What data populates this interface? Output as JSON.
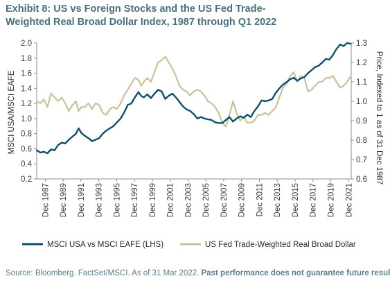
{
  "title": {
    "line1": "Exhibit 8: US vs Foreign Stocks and the US Fed Trade-",
    "line2": "Weighted Real Broad Dollar Index, 1987 through Q1 2022"
  },
  "source": {
    "text": "Source: Bloomberg. FactSet/MSCI. As of 31 Mar 2022.",
    "bold": "Past performance does not guarantee future results."
  },
  "colors": {
    "series1": "#0e4f6e",
    "series2": "#c7c29a",
    "title": "#4a6f7c",
    "source": "#5c7f8c"
  },
  "chart_data": {
    "type": "line",
    "ylabel": "MSCI USA/MSCI EAFE",
    "y2label": "Price, Indexed to 1 as of 31 Dec 1987",
    "ylim": [
      0.2,
      2.0
    ],
    "y2lim": [
      0.6,
      1.3
    ],
    "xlim": [
      1987.0,
      2022.25
    ],
    "yticks": [
      "2.0",
      "1.8",
      "1.6",
      "1.4",
      "1.2",
      "1.0",
      "0.8",
      "0.6",
      "0.4",
      "0.2"
    ],
    "y2ticks": [
      "1.3",
      "1.2",
      "1.1",
      "1.0",
      "0.9",
      "0.8",
      "0.7",
      "0.6"
    ],
    "xticks": [
      {
        "label": "Dec 1987",
        "year": 1987.96
      },
      {
        "label": "Dec 1989",
        "year": 1989.96
      },
      {
        "label": "Dec 1991",
        "year": 1991.96
      },
      {
        "label": "Dec 1993",
        "year": 1993.96
      },
      {
        "label": "Dec 1995",
        "year": 1995.96
      },
      {
        "label": "Dec 1997",
        "year": 1997.96
      },
      {
        "label": "Dec 1999",
        "year": 1999.96
      },
      {
        "label": "Dec 2001",
        "year": 2001.96
      },
      {
        "label": "Dec 2003",
        "year": 2003.96
      },
      {
        "label": "Dec 2005",
        "year": 2005.96
      },
      {
        "label": "Dec 2007",
        "year": 2007.96
      },
      {
        "label": "Dec 2009",
        "year": 2009.96
      },
      {
        "label": "Dec 2011",
        "year": 2011.96
      },
      {
        "label": "Dec 2013",
        "year": 2013.96
      },
      {
        "label": "Dec 2015",
        "year": 2015.96
      },
      {
        "label": "Dec 2017",
        "year": 2017.96
      },
      {
        "label": "Dec 2019",
        "year": 2019.96
      },
      {
        "label": "Dec 2021",
        "year": 2021.96
      }
    ],
    "grid": false,
    "legend_position": "bottom",
    "series": [
      {
        "name": "MSCI USA vs MSCI EAFE (LHS)",
        "axis": "left",
        "x": [
          1987.0,
          1987.4,
          1987.8,
          1988.2,
          1988.6,
          1989.0,
          1989.4,
          1989.8,
          1990.2,
          1990.6,
          1991.0,
          1991.4,
          1991.7,
          1992.0,
          1992.4,
          1992.8,
          1993.2,
          1993.6,
          1994.0,
          1994.4,
          1994.8,
          1995.2,
          1995.6,
          1996.0,
          1996.4,
          1996.8,
          1997.2,
          1997.6,
          1998.0,
          1998.4,
          1998.7,
          1999.0,
          1999.4,
          1999.8,
          2000.2,
          2000.6,
          2001.0,
          2001.4,
          2001.8,
          2002.2,
          2002.6,
          2003.0,
          2003.4,
          2003.8,
          2004.2,
          2004.6,
          2005.0,
          2005.4,
          2005.8,
          2006.2,
          2006.6,
          2007.0,
          2007.4,
          2007.8,
          2008.2,
          2008.6,
          2009.0,
          2009.4,
          2009.8,
          2010.2,
          2010.6,
          2011.0,
          2011.4,
          2011.8,
          2012.2,
          2012.6,
          2013.0,
          2013.4,
          2013.8,
          2014.2,
          2014.6,
          2015.0,
          2015.4,
          2015.8,
          2016.2,
          2016.6,
          2017.0,
          2017.4,
          2017.8,
          2018.2,
          2018.6,
          2019.0,
          2019.4,
          2019.8,
          2020.2,
          2020.6,
          2021.0,
          2021.4,
          2021.8,
          2022.2
        ],
        "values": [
          0.58,
          0.55,
          0.56,
          0.54,
          0.59,
          0.58,
          0.65,
          0.68,
          0.67,
          0.72,
          0.76,
          0.8,
          0.87,
          0.81,
          0.77,
          0.74,
          0.7,
          0.72,
          0.74,
          0.8,
          0.84,
          0.87,
          0.9,
          0.95,
          1.0,
          1.08,
          1.18,
          1.2,
          1.28,
          1.35,
          1.3,
          1.28,
          1.32,
          1.27,
          1.33,
          1.38,
          1.36,
          1.26,
          1.3,
          1.33,
          1.28,
          1.22,
          1.16,
          1.12,
          1.1,
          1.06,
          1.0,
          1.02,
          1.0,
          0.99,
          0.98,
          0.95,
          0.94,
          0.94,
          0.98,
          1.02,
          0.96,
          1.0,
          1.03,
          1.01,
          1.05,
          1.02,
          1.1,
          1.16,
          1.24,
          1.23,
          1.24,
          1.26,
          1.34,
          1.4,
          1.45,
          1.48,
          1.52,
          1.54,
          1.5,
          1.53,
          1.55,
          1.6,
          1.64,
          1.68,
          1.7,
          1.74,
          1.79,
          1.78,
          1.84,
          1.92,
          1.98,
          1.96,
          2.0,
          1.99
        ]
      },
      {
        "name": "US Fed Trade-Weighted Real Broad Dollar",
        "axis": "right",
        "x": [
          1987.0,
          1987.4,
          1987.8,
          1988.2,
          1988.6,
          1989.0,
          1989.4,
          1989.8,
          1990.2,
          1990.6,
          1991.0,
          1991.4,
          1991.7,
          1992.0,
          1992.4,
          1992.8,
          1993.2,
          1993.6,
          1994.0,
          1994.4,
          1994.8,
          1995.2,
          1995.6,
          1996.0,
          1996.4,
          1996.8,
          1997.2,
          1997.6,
          1998.0,
          1998.4,
          1998.7,
          1999.0,
          1999.4,
          1999.8,
          2000.2,
          2000.6,
          2001.0,
          2001.4,
          2001.8,
          2002.2,
          2002.6,
          2003.0,
          2003.4,
          2003.8,
          2004.2,
          2004.6,
          2005.0,
          2005.4,
          2005.8,
          2006.2,
          2006.6,
          2007.0,
          2007.4,
          2007.8,
          2008.2,
          2008.6,
          2009.0,
          2009.4,
          2009.8,
          2010.2,
          2010.6,
          2011.0,
          2011.4,
          2011.8,
          2012.2,
          2012.6,
          2013.0,
          2013.4,
          2013.8,
          2014.2,
          2014.6,
          2015.0,
          2015.4,
          2015.8,
          2016.2,
          2016.6,
          2017.0,
          2017.4,
          2017.8,
          2018.2,
          2018.6,
          2019.0,
          2019.4,
          2019.8,
          2020.2,
          2020.6,
          2021.0,
          2021.4,
          2021.8,
          2022.2
        ],
        "values": [
          1.0,
          0.99,
          1.01,
          0.97,
          1.04,
          1.02,
          1.0,
          1.02,
          0.99,
          0.95,
          0.98,
          1.0,
          0.95,
          0.97,
          0.97,
          0.99,
          0.96,
          0.99,
          0.98,
          0.94,
          0.93,
          0.96,
          0.97,
          0.96,
          0.99,
          1.03,
          1.06,
          1.09,
          1.12,
          1.11,
          1.08,
          1.1,
          1.12,
          1.1,
          1.15,
          1.2,
          1.21,
          1.23,
          1.2,
          1.17,
          1.13,
          1.08,
          1.06,
          1.05,
          1.03,
          1.05,
          1.06,
          1.05,
          1.03,
          1.0,
          0.99,
          0.97,
          0.94,
          0.89,
          0.87,
          0.93,
          1.0,
          0.94,
          0.9,
          0.92,
          0.89,
          0.89,
          0.9,
          0.93,
          0.93,
          0.94,
          0.93,
          0.95,
          0.97,
          1.02,
          1.07,
          1.09,
          1.13,
          1.15,
          1.1,
          1.13,
          1.12,
          1.05,
          1.06,
          1.08,
          1.1,
          1.1,
          1.12,
          1.12,
          1.13,
          1.1,
          1.07,
          1.08,
          1.1,
          1.13
        ]
      }
    ]
  }
}
